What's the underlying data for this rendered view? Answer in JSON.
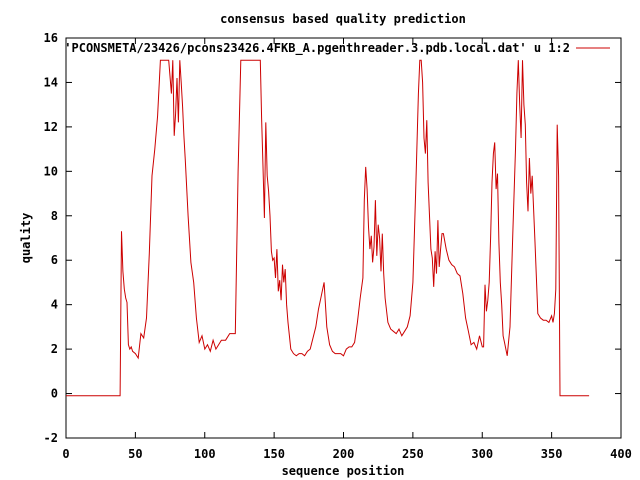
{
  "chart_data": {
    "type": "line",
    "title": "consensus based quality prediction",
    "xlabel": "sequence position",
    "ylabel": "quality",
    "xlim": [
      0,
      400
    ],
    "ylim": [
      -2,
      16
    ],
    "xticks": [
      0,
      50,
      100,
      150,
      200,
      250,
      300,
      350,
      400
    ],
    "yticks": [
      -2,
      0,
      2,
      4,
      6,
      8,
      10,
      12,
      14,
      16
    ],
    "grid": false,
    "legend_position": "top-right",
    "series_color": "#cc0000",
    "series": [
      {
        "name": "'PCONSMETA/23426/pcons23426.4FKB_A.pgenthreader.3.pdb.local.dat' u 1:2",
        "x": [
          0,
          39,
          40,
          41,
          42,
          43,
          44,
          45,
          46,
          47,
          48,
          50,
          52,
          54,
          56,
          58,
          60,
          62,
          64,
          66,
          68,
          70,
          72,
          74,
          76,
          77,
          78,
          79,
          80,
          81,
          82,
          83,
          84,
          85,
          86,
          88,
          90,
          92,
          94,
          96,
          98,
          100,
          102,
          104,
          106,
          108,
          110,
          112,
          115,
          118,
          120,
          122,
          124,
          126,
          128,
          130,
          135,
          140,
          141,
          142,
          143,
          144,
          145,
          146,
          147,
          148,
          149,
          150,
          151,
          152,
          153,
          154,
          155,
          156,
          157,
          158,
          159,
          160,
          162,
          164,
          166,
          168,
          170,
          172,
          174,
          176,
          178,
          180,
          182,
          184,
          186,
          188,
          190,
          192,
          194,
          196,
          198,
          200,
          202,
          204,
          206,
          208,
          210,
          212,
          214,
          215,
          216,
          217,
          218,
          219,
          220,
          221,
          222,
          223,
          224,
          225,
          226,
          227,
          228,
          229,
          230,
          232,
          234,
          236,
          238,
          240,
          242,
          244,
          246,
          248,
          250,
          252,
          254,
          255,
          256,
          257,
          258,
          259,
          260,
          261,
          262,
          263,
          264,
          265,
          266,
          267,
          268,
          269,
          270,
          271,
          272,
          274,
          276,
          278,
          280,
          282,
          284,
          286,
          288,
          290,
          292,
          294,
          296,
          298,
          300,
          301,
          302,
          303,
          304,
          305,
          306,
          307,
          308,
          309,
          310,
          311,
          312,
          313,
          314,
          315,
          316,
          318,
          320,
          322,
          324,
          325,
          326,
          327,
          328,
          329,
          330,
          331,
          332,
          333,
          334,
          335,
          336,
          338,
          340,
          342,
          344,
          346,
          348,
          350,
          351,
          352,
          353,
          354,
          355,
          356,
          360,
          365,
          370,
          375,
          377
        ],
        "y": [
          -0.1,
          -0.1,
          7.3,
          5.5,
          4.7,
          4.3,
          4.1,
          2.2,
          2.0,
          2.1,
          1.9,
          1.8,
          1.6,
          2.7,
          2.5,
          3.4,
          6.3,
          9.8,
          11.0,
          12.5,
          15.0,
          15.0,
          15.0,
          15.0,
          13.5,
          15.0,
          11.6,
          12.6,
          14.2,
          12.2,
          15.0,
          14.0,
          12.9,
          11.6,
          10.5,
          8.0,
          5.9,
          5.0,
          3.4,
          2.3,
          2.6,
          2.0,
          2.2,
          1.9,
          2.4,
          2.0,
          2.2,
          2.4,
          2.4,
          2.7,
          2.7,
          2.7,
          10.0,
          15.0,
          15.0,
          15.0,
          15.0,
          15.0,
          12.4,
          10.2,
          7.9,
          12.2,
          9.8,
          9.1,
          8.0,
          6.4,
          6.0,
          6.1,
          5.2,
          6.5,
          4.6,
          5.1,
          4.2,
          5.8,
          5.0,
          5.6,
          4.0,
          3.2,
          2.0,
          1.8,
          1.7,
          1.8,
          1.8,
          1.7,
          1.9,
          2.0,
          2.5,
          3.0,
          3.8,
          4.4,
          5.0,
          3.0,
          2.2,
          1.9,
          1.8,
          1.8,
          1.8,
          1.7,
          2.0,
          2.1,
          2.1,
          2.3,
          3.2,
          4.3,
          5.2,
          8.7,
          10.2,
          9.2,
          7.5,
          6.5,
          7.1,
          5.9,
          6.6,
          8.7,
          6.2,
          7.6,
          7.0,
          5.5,
          7.2,
          5.4,
          4.3,
          3.2,
          2.9,
          2.8,
          2.7,
          2.9,
          2.6,
          2.8,
          3.0,
          3.5,
          5.0,
          9.0,
          13.5,
          15.0,
          15.0,
          14.0,
          11.5,
          10.8,
          12.3,
          9.5,
          8.0,
          6.5,
          6.1,
          4.8,
          6.4,
          5.4,
          7.8,
          5.7,
          6.5,
          7.2,
          7.2,
          6.5,
          6.0,
          5.8,
          5.7,
          5.4,
          5.3,
          4.5,
          3.4,
          2.8,
          2.2,
          2.3,
          2.0,
          2.6,
          2.1,
          2.1,
          4.9,
          3.7,
          4.2,
          5.0,
          7.0,
          9.5,
          10.8,
          11.3,
          9.2,
          9.9,
          6.8,
          5.0,
          4.0,
          2.6,
          2.3,
          1.7,
          3.0,
          7.2,
          11.0,
          13.5,
          15.0,
          13.0,
          11.5,
          15.0,
          13.0,
          12.1,
          9.5,
          8.2,
          10.6,
          9.0,
          9.8,
          6.8,
          3.6,
          3.4,
          3.3,
          3.3,
          3.2,
          3.5,
          3.2,
          3.6,
          4.7,
          12.1,
          9.8,
          -0.1,
          -0.1,
          -0.1,
          -0.1,
          -0.1,
          -0.1
        ]
      }
    ]
  }
}
